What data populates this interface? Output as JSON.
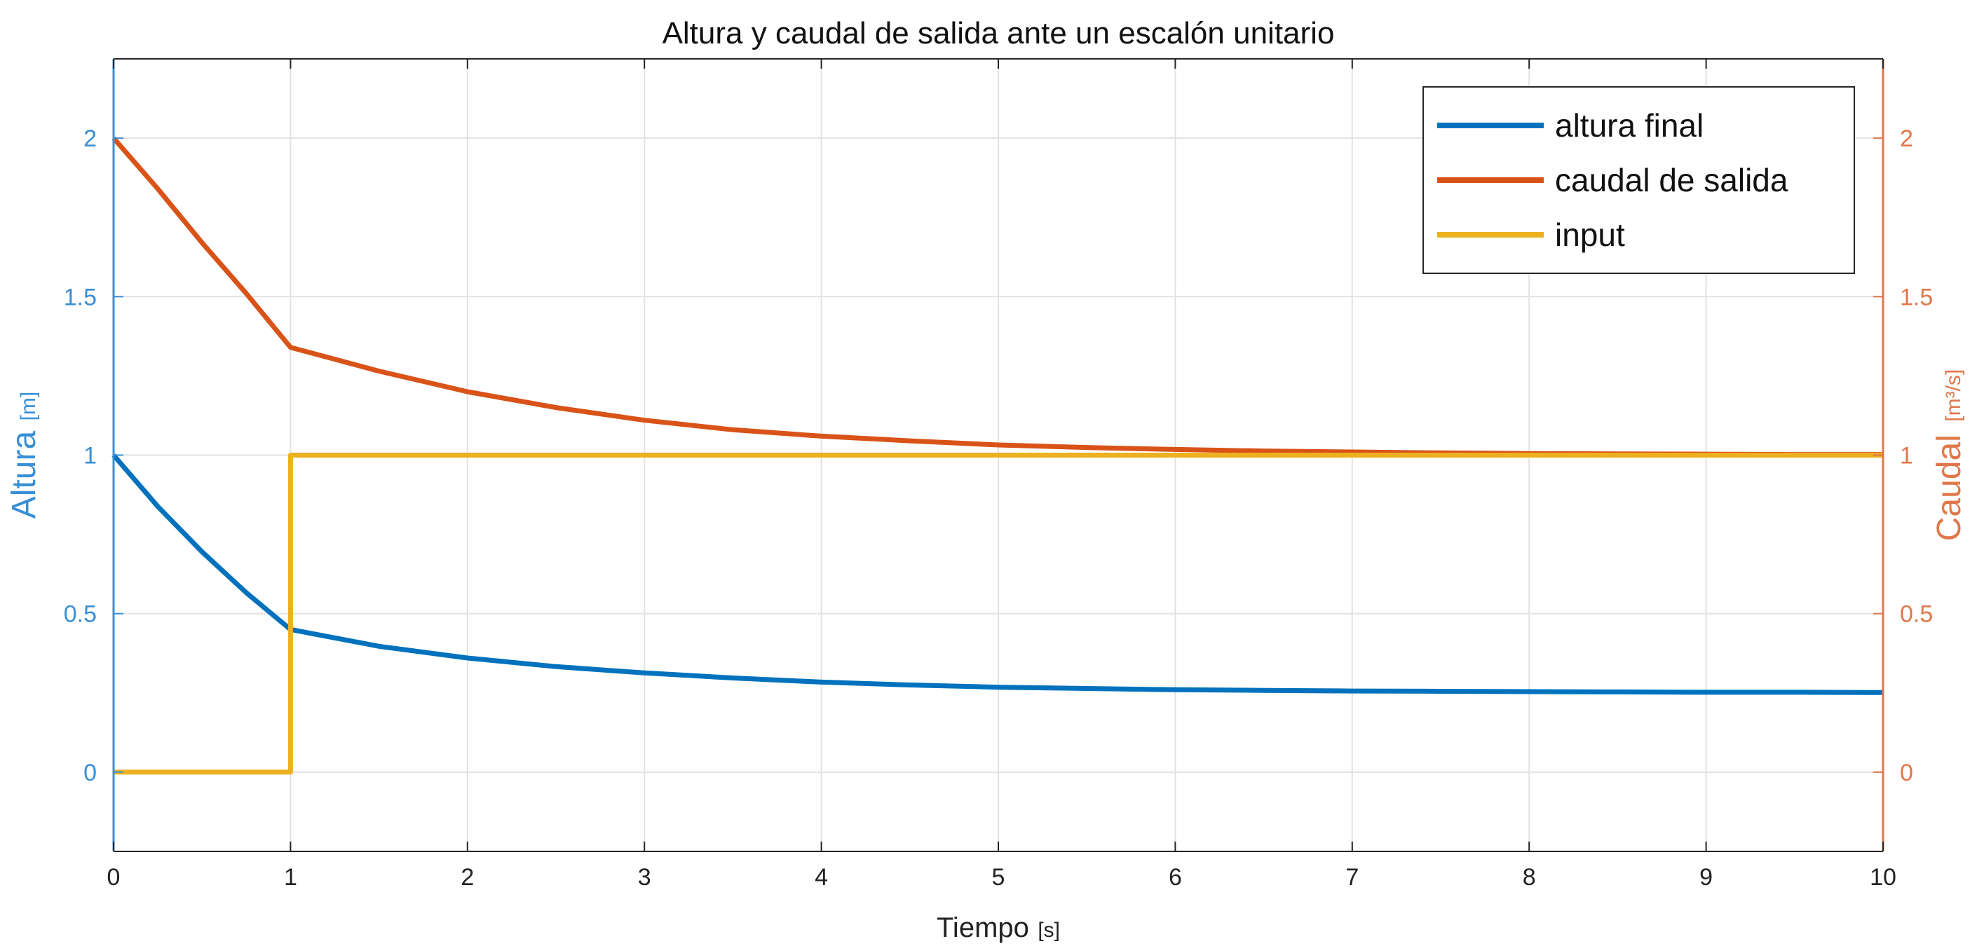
{
  "chart_data": {
    "type": "line",
    "title": "Altura y caudal de salida ante un escalón unitario",
    "xlabel": {
      "main": "Tiempo",
      "unit": "[s]"
    },
    "ylabel_left": {
      "main": "Altura",
      "unit": "[m]"
    },
    "ylabel_right": {
      "main": "Caudal",
      "unit": "[m³/s]"
    },
    "xlim": [
      0,
      10
    ],
    "ylim": [
      -0.25,
      2.25
    ],
    "xticks": [
      "0",
      "1",
      "2",
      "3",
      "4",
      "5",
      "6",
      "7",
      "8",
      "9",
      "10"
    ],
    "yticks_left": [
      "0",
      "0.5",
      "1",
      "1.5",
      "2"
    ],
    "yticks_right": [
      "0",
      "0.5",
      "1",
      "1.5",
      "2"
    ],
    "grid": true,
    "legend_position": "top-right",
    "colors": {
      "left_axis": "#3a8fd6",
      "right_axis": "#e0774a",
      "box": "#262626",
      "grid": "#e2e2e2"
    },
    "series": [
      {
        "name": "altura final",
        "color": "#0072bd",
        "axis": "left",
        "x": [
          0,
          0.25,
          0.5,
          0.75,
          1,
          1.5,
          2,
          2.5,
          3,
          3.5,
          4,
          4.5,
          5,
          5.5,
          6,
          6.5,
          7,
          7.5,
          8,
          8.5,
          9,
          9.5,
          10
        ],
        "y": [
          1.0,
          0.838,
          0.695,
          0.566,
          0.45,
          0.397,
          0.36,
          0.333,
          0.313,
          0.297,
          0.284,
          0.275,
          0.268,
          0.264,
          0.26,
          0.258,
          0.256,
          0.255,
          0.254,
          0.253,
          0.252,
          0.252,
          0.251
        ]
      },
      {
        "name": "caudal de salida",
        "color": "#d95319",
        "axis": "right",
        "x": [
          0,
          0.25,
          0.5,
          0.75,
          1,
          1.5,
          2,
          2.5,
          3,
          3.5,
          4,
          4.5,
          5,
          5.5,
          6,
          6.5,
          7,
          7.5,
          8,
          8.5,
          9,
          9.5,
          10
        ],
        "y": [
          2.0,
          1.84,
          1.67,
          1.51,
          1.34,
          1.265,
          1.2,
          1.15,
          1.11,
          1.08,
          1.06,
          1.045,
          1.032,
          1.024,
          1.018,
          1.013,
          1.01,
          1.007,
          1.005,
          1.004,
          1.003,
          1.002,
          1.002
        ]
      },
      {
        "name": "input",
        "color": "#edb120",
        "axis": "left",
        "x": [
          0,
          1,
          1,
          10
        ],
        "y": [
          0,
          0,
          1,
          1
        ]
      }
    ]
  }
}
